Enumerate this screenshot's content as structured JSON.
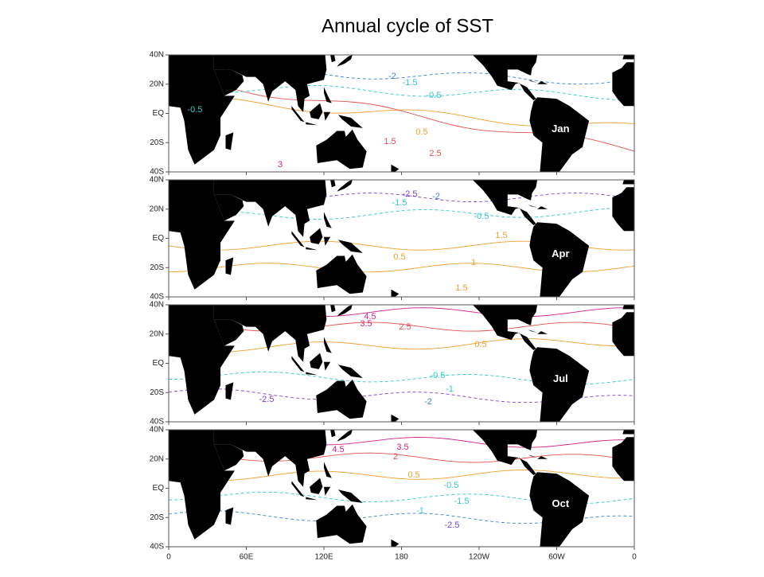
{
  "title": "Annual cycle of SST",
  "lat_labels": [
    "40N",
    "20N",
    "EQ",
    "20S",
    "40S"
  ],
  "lon_labels": [
    "0",
    "60E",
    "120E",
    "180",
    "120W",
    "60W",
    "0"
  ],
  "panels": [
    {
      "label": "Jan",
      "contour_labels": [
        "-2",
        "-1.5",
        "-0.5",
        "-0.5",
        "0.5",
        "1.5",
        "2.5",
        "3"
      ]
    },
    {
      "label": "Apr",
      "contour_labels": [
        "-2.5",
        "-2",
        "-1.5",
        "-0.5",
        "1.5",
        "1",
        "0.5",
        "1.5"
      ]
    },
    {
      "label": "Jul",
      "contour_labels": [
        "4.5",
        "3.5",
        "2.5",
        "0.5",
        "-0.5",
        "-1",
        "-2",
        "-2.5"
      ]
    },
    {
      "label": "Oct",
      "contour_labels": [
        "4.5",
        "3.5",
        "2",
        "0.5",
        "-0.5",
        "-1.5",
        "-1",
        "-2.5"
      ]
    }
  ]
}
